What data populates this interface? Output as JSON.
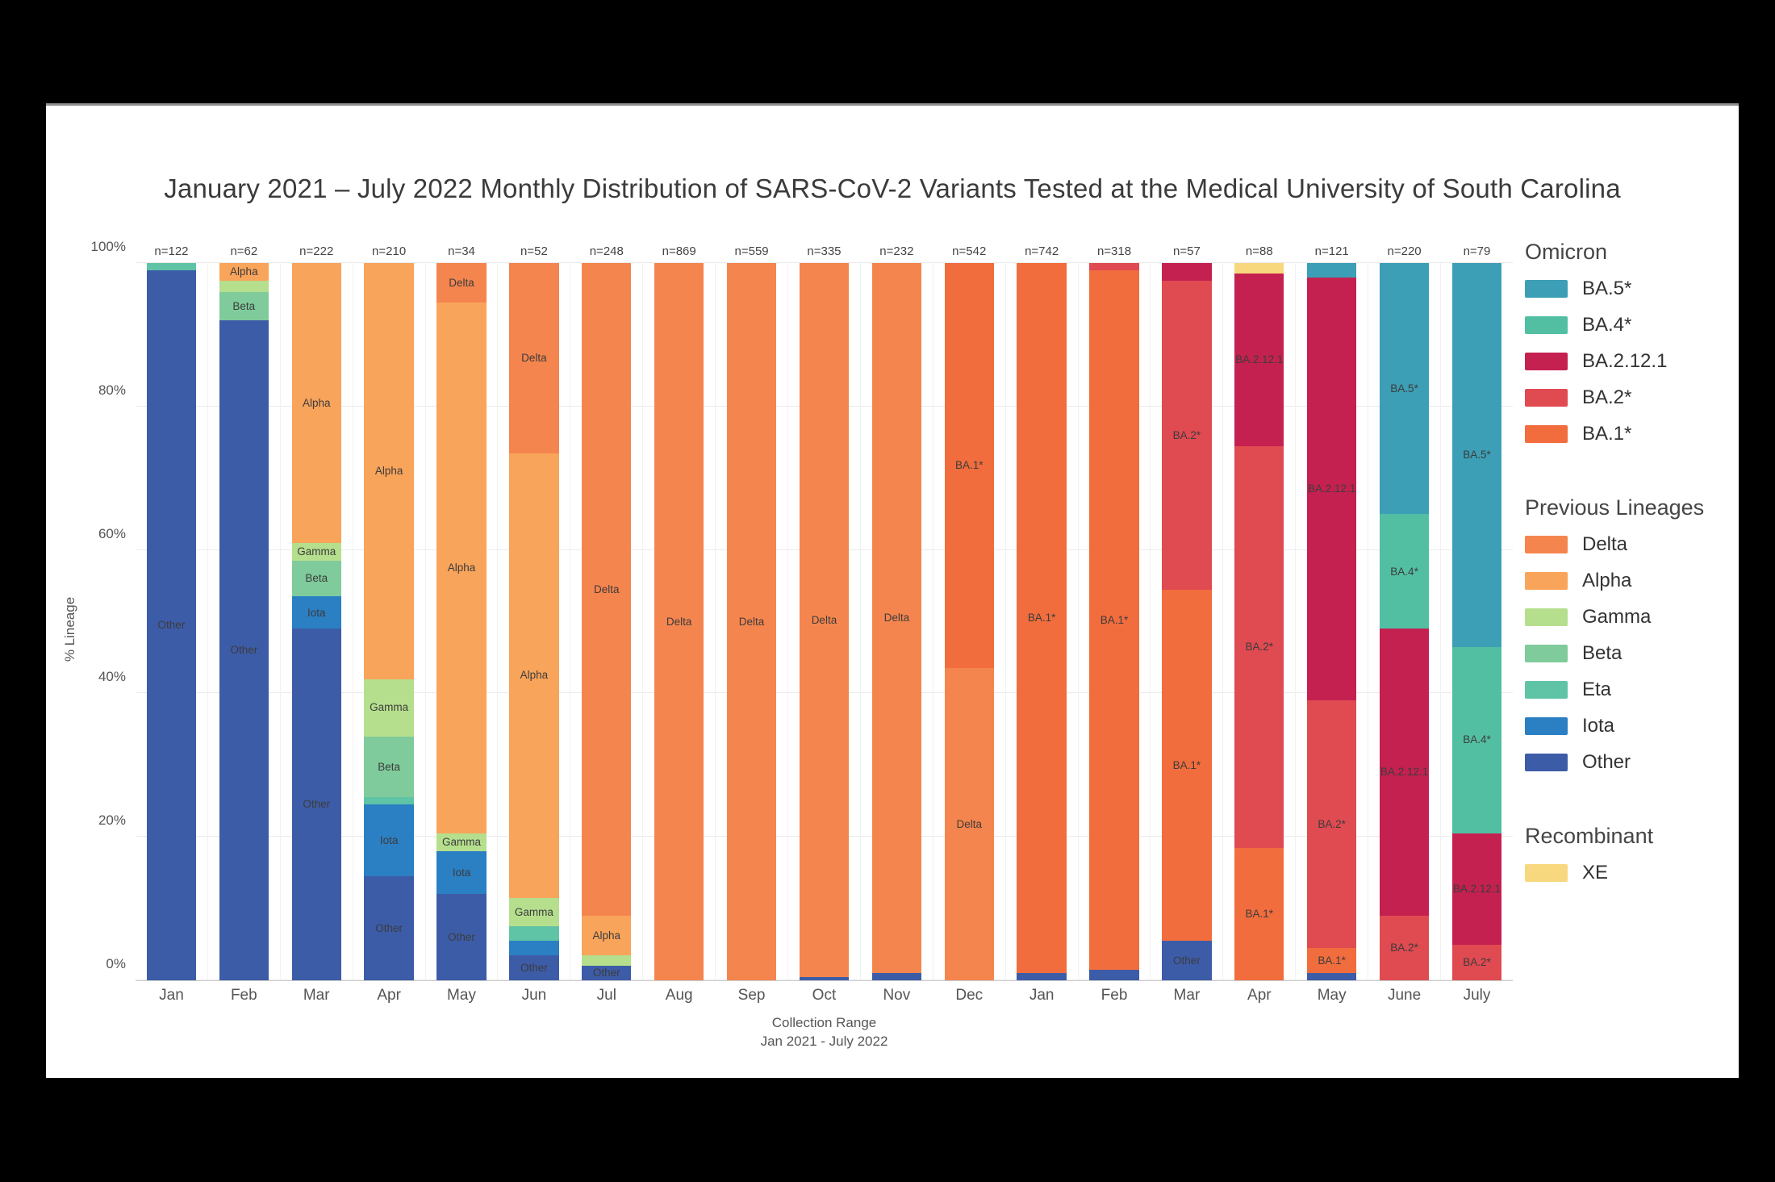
{
  "page": {
    "background": "#000000",
    "card_background": "#ffffff"
  },
  "chart_data": {
    "type": "bar",
    "stacked": true,
    "title": "January 2021 – July 2022 Monthly Distribution of SARS-CoV-2 Variants Tested at the Medical University of South Carolina",
    "ylabel": "% Lineage",
    "xlabel_line1": "Collection Range",
    "xlabel_line2": "Jan 2021 - July 2022",
    "ylim": [
      0,
      100
    ],
    "grid": "horizontal-light",
    "legend_position": "right",
    "yticks": [
      {
        "value": 0,
        "label": "0%"
      },
      {
        "value": 20,
        "label": "20%"
      },
      {
        "value": 40,
        "label": "40%"
      },
      {
        "value": 60,
        "label": "60%"
      },
      {
        "value": 80,
        "label": "80%"
      },
      {
        "value": 100,
        "label": "100%"
      }
    ],
    "palette": {
      "Other": "#3D5CA8",
      "Iota": "#2B7FC3",
      "Eta": "#5FC4A5",
      "Beta": "#7FCB9B",
      "Gamma": "#B5DF8D",
      "Alpha": "#F9A45B",
      "Delta": "#F5854E",
      "BA.1*": "#F16D3D",
      "BA.2*": "#E04A51",
      "BA.2.12.1": "#C42150",
      "BA.4*": "#52BFA3",
      "BA.5*": "#3C9FB6",
      "XE": "#F8D87F"
    },
    "months": [
      {
        "month": "Jan",
        "n_label": "n=122",
        "segments": [
          {
            "lineage": "Other",
            "value": 99,
            "labeled": true
          },
          {
            "lineage": "Eta",
            "value": 1,
            "labeled": false
          }
        ]
      },
      {
        "month": "Feb",
        "n_label": "n=62",
        "segments": [
          {
            "lineage": "Other",
            "value": 92,
            "labeled": true
          },
          {
            "lineage": "Beta",
            "value": 4,
            "labeled": true
          },
          {
            "lineage": "Gamma",
            "value": 1.5,
            "labeled": false
          },
          {
            "lineage": "Alpha",
            "value": 2.5,
            "labeled": true
          }
        ]
      },
      {
        "month": "Mar",
        "n_label": "n=222",
        "segments": [
          {
            "lineage": "Other",
            "value": 49,
            "labeled": true
          },
          {
            "lineage": "Iota",
            "value": 4.5,
            "labeled": true
          },
          {
            "lineage": "Beta",
            "value": 5,
            "labeled": true
          },
          {
            "lineage": "Gamma",
            "value": 2.5,
            "labeled": true
          },
          {
            "lineage": "Alpha",
            "value": 39,
            "labeled": true
          }
        ]
      },
      {
        "month": "Apr",
        "n_label": "n=210",
        "segments": [
          {
            "lineage": "Other",
            "value": 14.5,
            "labeled": true
          },
          {
            "lineage": "Iota",
            "value": 10,
            "labeled": true
          },
          {
            "lineage": "Eta",
            "value": 1,
            "labeled": false
          },
          {
            "lineage": "Beta",
            "value": 8.5,
            "labeled": true
          },
          {
            "lineage": "Gamma",
            "value": 8,
            "labeled": true
          },
          {
            "lineage": "Alpha",
            "value": 58,
            "labeled": true
          }
        ]
      },
      {
        "month": "May",
        "n_label": "n=34",
        "segments": [
          {
            "lineage": "Other",
            "value": 12,
            "labeled": true
          },
          {
            "lineage": "Iota",
            "value": 6,
            "labeled": true
          },
          {
            "lineage": "Gamma",
            "value": 2.5,
            "labeled": true
          },
          {
            "lineage": "Alpha",
            "value": 74,
            "labeled": true
          },
          {
            "lineage": "Delta",
            "value": 5.5,
            "labeled": true
          }
        ]
      },
      {
        "month": "Jun",
        "n_label": "n=52",
        "segments": [
          {
            "lineage": "Other",
            "value": 3.5,
            "labeled": true
          },
          {
            "lineage": "Iota",
            "value": 2,
            "labeled": false
          },
          {
            "lineage": "Eta",
            "value": 2,
            "labeled": false
          },
          {
            "lineage": "Gamma",
            "value": 4,
            "labeled": true
          },
          {
            "lineage": "Alpha",
            "value": 62,
            "labeled": true
          },
          {
            "lineage": "Delta",
            "value": 26.5,
            "labeled": true
          }
        ]
      },
      {
        "month": "Jul",
        "n_label": "n=248",
        "segments": [
          {
            "lineage": "Other",
            "value": 2,
            "labeled": true
          },
          {
            "lineage": "Gamma",
            "value": 1.5,
            "labeled": false
          },
          {
            "lineage": "Alpha",
            "value": 5.5,
            "labeled": true
          },
          {
            "lineage": "Delta",
            "value": 91,
            "labeled": true
          }
        ]
      },
      {
        "month": "Aug",
        "n_label": "n=869",
        "segments": [
          {
            "lineage": "Delta",
            "value": 100,
            "labeled": true
          }
        ]
      },
      {
        "month": "Sep",
        "n_label": "n=559",
        "segments": [
          {
            "lineage": "Delta",
            "value": 100,
            "labeled": true
          }
        ]
      },
      {
        "month": "Oct",
        "n_label": "n=335",
        "segments": [
          {
            "lineage": "Other",
            "value": 0.5,
            "labeled": false
          },
          {
            "lineage": "Delta",
            "value": 99.5,
            "labeled": true
          }
        ]
      },
      {
        "month": "Nov",
        "n_label": "n=232",
        "segments": [
          {
            "lineage": "Other",
            "value": 1,
            "labeled": false
          },
          {
            "lineage": "Delta",
            "value": 99,
            "labeled": true
          }
        ]
      },
      {
        "month": "Dec",
        "n_label": "n=542",
        "segments": [
          {
            "lineage": "Delta",
            "value": 43.5,
            "labeled": true
          },
          {
            "lineage": "BA.1*",
            "value": 56.5,
            "labeled": true
          }
        ]
      },
      {
        "month": "Jan",
        "n_label": "n=742",
        "segments": [
          {
            "lineage": "Other",
            "value": 1,
            "labeled": false
          },
          {
            "lineage": "BA.1*",
            "value": 99,
            "labeled": true
          }
        ]
      },
      {
        "month": "Feb",
        "n_label": "n=318",
        "segments": [
          {
            "lineage": "Other",
            "value": 1.5,
            "labeled": false
          },
          {
            "lineage": "BA.1*",
            "value": 97.5,
            "labeled": true
          },
          {
            "lineage": "BA.2*",
            "value": 1,
            "labeled": false
          }
        ]
      },
      {
        "month": "Mar",
        "n_label": "n=57",
        "segments": [
          {
            "lineage": "Other",
            "value": 5.5,
            "labeled": true
          },
          {
            "lineage": "BA.1*",
            "value": 49,
            "labeled": true
          },
          {
            "lineage": "BA.2*",
            "value": 43,
            "labeled": true
          },
          {
            "lineage": "BA.2.12.1",
            "value": 2.5,
            "labeled": false
          }
        ]
      },
      {
        "month": "Apr",
        "n_label": "n=88",
        "segments": [
          {
            "lineage": "BA.1*",
            "value": 18.5,
            "labeled": true
          },
          {
            "lineage": "BA.2*",
            "value": 56,
            "labeled": true
          },
          {
            "lineage": "BA.2.12.1",
            "value": 24,
            "labeled": true
          },
          {
            "lineage": "XE",
            "value": 1.5,
            "labeled": false
          }
        ]
      },
      {
        "month": "May",
        "n_label": "n=121",
        "segments": [
          {
            "lineage": "Other",
            "value": 1,
            "labeled": false
          },
          {
            "lineage": "BA.1*",
            "value": 3.5,
            "labeled": true
          },
          {
            "lineage": "BA.2*",
            "value": 34.5,
            "labeled": true
          },
          {
            "lineage": "BA.2.12.1",
            "value": 59,
            "labeled": true
          },
          {
            "lineage": "BA.5*",
            "value": 2,
            "labeled": false
          }
        ]
      },
      {
        "month": "June",
        "n_label": "n=220",
        "segments": [
          {
            "lineage": "BA.2*",
            "value": 9,
            "labeled": true
          },
          {
            "lineage": "BA.2.12.1",
            "value": 40,
            "labeled": true
          },
          {
            "lineage": "BA.4*",
            "value": 16,
            "labeled": true
          },
          {
            "lineage": "BA.5*",
            "value": 35,
            "labeled": true
          }
        ]
      },
      {
        "month": "July",
        "n_label": "n=79",
        "segments": [
          {
            "lineage": "BA.2*",
            "value": 5,
            "labeled": true
          },
          {
            "lineage": "BA.2.12.1",
            "value": 15.5,
            "labeled": true
          },
          {
            "lineage": "BA.4*",
            "value": 26,
            "labeled": true
          },
          {
            "lineage": "BA.5*",
            "value": 53.5,
            "labeled": true
          }
        ]
      }
    ]
  },
  "legend": {
    "groups": [
      {
        "title": "Omicron",
        "items": [
          "BA.5*",
          "BA.4*",
          "BA.2.12.1",
          "BA.2*",
          "BA.1*"
        ]
      },
      {
        "title": "Previous Lineages",
        "items": [
          "Delta",
          "Alpha",
          "Gamma",
          "Beta",
          "Eta",
          "Iota",
          "Other"
        ]
      },
      {
        "title": "Recombinant",
        "items": [
          "XE"
        ]
      }
    ]
  }
}
